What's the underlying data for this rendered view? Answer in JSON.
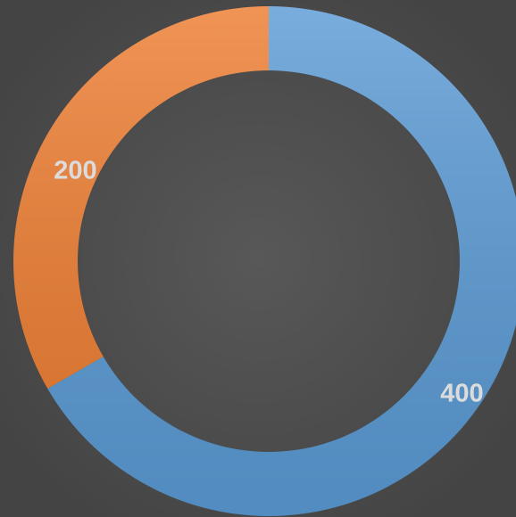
{
  "chart_data": {
    "type": "donut",
    "values": [
      400,
      200
    ],
    "colors": [
      "#5b9bd5",
      "#ed7d31"
    ]
  }
}
